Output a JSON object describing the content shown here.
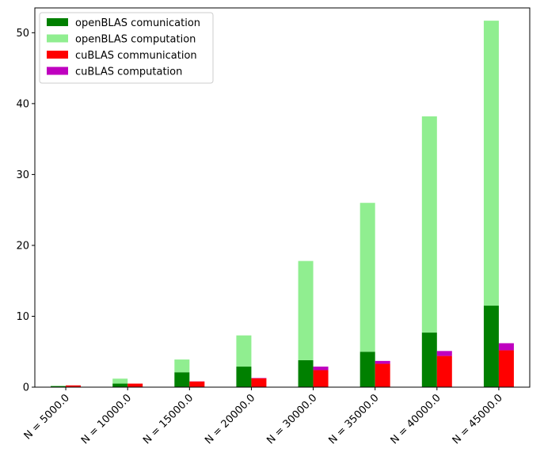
{
  "chart_data": {
    "type": "bar",
    "stacked": true,
    "grouped": true,
    "categories": [
      "N = 5000.0",
      "N = 10000.0",
      "N = 15000.0",
      "N = 20000.0",
      "N = 30000.0",
      "N = 35000.0",
      "N = 40000.0",
      "N = 45000.0"
    ],
    "ylim": [
      0,
      53.5
    ],
    "yticks": [
      0,
      10,
      20,
      30,
      40,
      50
    ],
    "grid": false,
    "legend_position": "top-left",
    "xtick_rotation": -45,
    "groups": [
      {
        "stack": "openBLAS",
        "series": [
          {
            "name": "openBLAS comunication",
            "color": "#008000",
            "values": [
              0.15,
              0.5,
              2.1,
              2.9,
              3.8,
              5.0,
              7.7,
              11.5
            ]
          },
          {
            "name": "openBLAS computation",
            "color": "#90ee90",
            "values": [
              0.05,
              0.7,
              1.8,
              4.4,
              14.0,
              21.0,
              30.5,
              40.2
            ]
          }
        ]
      },
      {
        "stack": "cuBLAS",
        "series": [
          {
            "name": "cuBLAS communication",
            "color": "#ff0000",
            "values": [
              0.25,
              0.5,
              0.8,
              1.25,
              2.4,
              3.3,
              4.4,
              5.2
            ]
          },
          {
            "name": "cuBLAS computation",
            "color": "#bf00bf",
            "values": [
              0.0,
              0.0,
              0.02,
              0.05,
              0.5,
              0.4,
              0.7,
              1.0
            ]
          }
        ]
      }
    ]
  }
}
